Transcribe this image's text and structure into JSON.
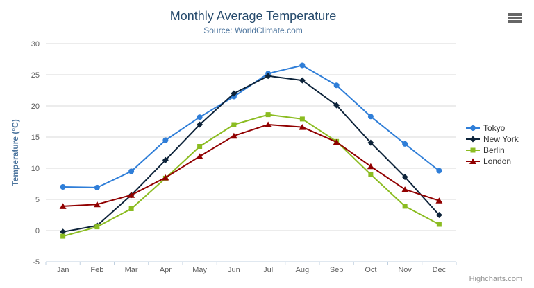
{
  "chart": {
    "credits_label": "Highcharts.com",
    "menu_icon": "hamburger-icon",
    "colors": {
      "title": "#274b6d",
      "subtitle": "#4d759e",
      "axis_title": "#4d759e",
      "tick_label": "#606060",
      "grid_line": "#d8d8d8",
      "axis_line": "#c0d0e0",
      "legend_text": "#333333",
      "credits": "#909090",
      "menu_icon": "#666666",
      "background": "#ffffff"
    }
  },
  "chart_data": {
    "type": "line",
    "title": "Monthly Average Temperature",
    "subtitle": "Source: WorldClimate.com",
    "xlabel": "",
    "ylabel": "Temperature (°C)",
    "ylim": [
      -5,
      30
    ],
    "yticks": [
      -5,
      0,
      5,
      10,
      15,
      20,
      25,
      30
    ],
    "grid": true,
    "legend_position": "right",
    "categories": [
      "Jan",
      "Feb",
      "Mar",
      "Apr",
      "May",
      "Jun",
      "Jul",
      "Aug",
      "Sep",
      "Oct",
      "Nov",
      "Dec"
    ],
    "series": [
      {
        "name": "Tokyo",
        "color": "#2f7ed8",
        "marker": "circle",
        "values": [
          7.0,
          6.9,
          9.5,
          14.5,
          18.2,
          21.5,
          25.2,
          26.5,
          23.3,
          18.3,
          13.9,
          9.6
        ]
      },
      {
        "name": "New York",
        "color": "#0d233a",
        "marker": "diamond",
        "values": [
          -0.2,
          0.8,
          5.7,
          11.3,
          17.0,
          22.0,
          24.8,
          24.1,
          20.1,
          14.1,
          8.6,
          2.5
        ]
      },
      {
        "name": "Berlin",
        "color": "#8bbc21",
        "marker": "square",
        "values": [
          -0.9,
          0.6,
          3.5,
          8.4,
          13.5,
          17.0,
          18.6,
          17.9,
          14.3,
          9.0,
          3.9,
          1.0
        ]
      },
      {
        "name": "London",
        "color": "#910000",
        "marker": "triangle",
        "values": [
          3.9,
          4.2,
          5.7,
          8.5,
          11.9,
          15.2,
          17.0,
          16.6,
          14.2,
          10.3,
          6.6,
          4.8
        ]
      }
    ]
  }
}
